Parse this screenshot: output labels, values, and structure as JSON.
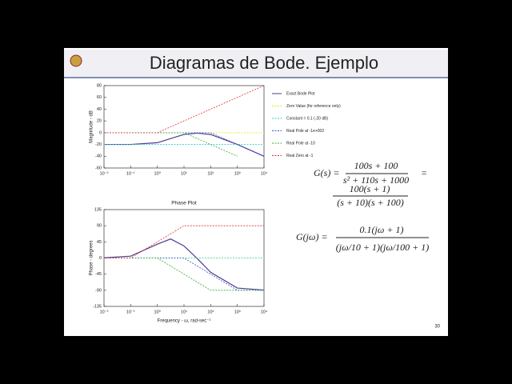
{
  "slide": {
    "title": "Diagramas de Bode. Ejemplo",
    "page_number": "30",
    "equations": [
      {
        "lhs": "G(s) =",
        "numerator": "100s + 100",
        "denominator": "s² + 110s + 1000",
        "suffix": "=",
        "numerator2": "100(s + 1)",
        "denominator2": "(s + 10)(s + 100)"
      },
      {
        "lhs": "G(jω) =",
        "numerator": "0.1(jω + 1)",
        "denominator": "(jω/10 + 1)(jω/100 + 1)"
      }
    ]
  },
  "chart_data": [
    {
      "type": "line",
      "y_label": "Magnitude - dB",
      "xscale": "log",
      "grid": false,
      "xlim": [
        0.01,
        10000
      ],
      "ylim": [
        -60,
        80
      ],
      "xticks": [
        {
          "value": 0.01,
          "label": "10⁻²"
        },
        {
          "value": 0.1,
          "label": "10⁻¹"
        },
        {
          "value": 1,
          "label": "10⁰"
        },
        {
          "value": 10,
          "label": "10¹"
        },
        {
          "value": 100,
          "label": "10²"
        },
        {
          "value": 1000,
          "label": "10³"
        },
        {
          "value": 10000,
          "label": "10⁴"
        }
      ],
      "yticks": [
        -60,
        -40,
        -20,
        0,
        20,
        40,
        60,
        80
      ],
      "series": [
        {
          "name": "Exact Bode Plot",
          "color": "#4b3b8f",
          "style": "solid",
          "x": [
            0.01,
            0.1,
            1,
            3.16,
            10,
            31.6,
            100,
            1000,
            10000
          ],
          "values": [
            -20,
            -19.96,
            -17.03,
            -10,
            -3.01,
            -0.8,
            -3.05,
            -20.04,
            -40
          ]
        },
        {
          "name": "Zero Value (for reference only)",
          "color": "#e6e600",
          "style": "dashed",
          "x": [
            0.01,
            10000
          ],
          "values": [
            0,
            0
          ]
        },
        {
          "name": "Constant = 0.1 (-20 dB)",
          "color": "#33cccc",
          "style": "dashed",
          "x": [
            0.01,
            10000
          ],
          "values": [
            -20,
            -20
          ]
        },
        {
          "name": "Real Pole at -1e+002",
          "color": "#3355cc",
          "style": "dashed",
          "x": [
            0.01,
            100,
            10000
          ],
          "values": [
            0,
            0,
            -40
          ]
        },
        {
          "name": "Real Pole at -10",
          "color": "#33aa33",
          "style": "dashed",
          "x": [
            0.01,
            10,
            1000
          ],
          "values": [
            0,
            0,
            -40
          ]
        },
        {
          "name": "Real Zero at -1",
          "color": "#dd3333",
          "style": "dashed",
          "x": [
            0.01,
            1,
            10000
          ],
          "values": [
            0,
            0,
            80
          ]
        }
      ]
    },
    {
      "type": "line",
      "title": "Phase Plot",
      "y_label": "Phase - degrees",
      "x_label": "Frequency - ω, rad-sec⁻¹",
      "xscale": "log",
      "grid": false,
      "xlim": [
        0.01,
        10000
      ],
      "ylim": [
        -135,
        135
      ],
      "xticks": [
        {
          "value": 0.01,
          "label": "10⁻²"
        },
        {
          "value": 0.1,
          "label": "10⁻¹"
        },
        {
          "value": 1,
          "label": "10⁰"
        },
        {
          "value": 10,
          "label": "10¹"
        },
        {
          "value": 100,
          "label": "10²"
        },
        {
          "value": 1000,
          "label": "10³"
        },
        {
          "value": 10000,
          "label": "10⁴"
        }
      ],
      "yticks": [
        -135,
        -90,
        -45,
        0,
        45,
        90,
        135
      ],
      "series": [
        {
          "color": "#4b3b8f",
          "style": "solid",
          "x": [
            0.01,
            0.1,
            1,
            3.16,
            10,
            31.6,
            100,
            1000,
            10000
          ],
          "values": [
            0.5,
            5.1,
            38.7,
            53.1,
            33.6,
            -1.8,
            -39.9,
            -83.8,
            -89.4
          ]
        },
        {
          "color": "#e6e600",
          "style": "dashed",
          "x": [
            0.01,
            10000
          ],
          "values": [
            0,
            0
          ]
        },
        {
          "color": "#33cccc",
          "style": "dashed",
          "x": [
            0.01,
            10000
          ],
          "values": [
            0,
            0
          ]
        },
        {
          "color": "#3355cc",
          "style": "dashed",
          "x": [
            0.01,
            10,
            1000,
            10000
          ],
          "values": [
            0,
            0,
            -90,
            -90
          ]
        },
        {
          "color": "#33aa33",
          "style": "dashed",
          "x": [
            0.01,
            1,
            100,
            10000
          ],
          "values": [
            0,
            0,
            -90,
            -90
          ]
        },
        {
          "color": "#dd3333",
          "style": "dashed",
          "x": [
            0.01,
            0.1,
            10,
            10000
          ],
          "values": [
            0,
            0,
            90,
            90
          ]
        }
      ]
    }
  ]
}
